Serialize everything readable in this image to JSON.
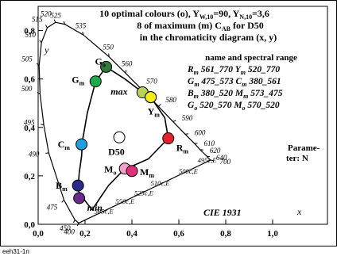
{
  "header": {
    "line1": "10 optimal colours (o), Y",
    "line1_sub1": "W,10",
    "line1_mid": "=90, Y",
    "line1_sub2": "N,10",
    "line1_end": "=3,6",
    "line2": "8 of maximum (m) C",
    "line2_sub": "AB",
    "line2_end": " for D50",
    "line3": "in the chromaticity diagram (x, y)"
  },
  "legend": {
    "heading": "name and spectral range",
    "rows": [
      [
        "R",
        "m",
        " 561_770 ",
        "Y",
        "m",
        " 520_770"
      ],
      [
        "G",
        "m",
        " 475_573 ",
        "C",
        "m",
        " 380_561"
      ],
      [
        "B",
        "m",
        " 380_520 ",
        "M",
        "m",
        " 573_475"
      ],
      [
        "G",
        "o",
        " 520_570 ",
        "M",
        "o",
        " 570_520"
      ]
    ]
  },
  "side_note": {
    "line1": "Parame-",
    "line2": "ter: N"
  },
  "cie_label": "CIE 1931",
  "axis": {
    "x_title": "x",
    "y_title": "y",
    "x_ticks": [
      "0,0",
      "0,2",
      "0,4",
      "0,6",
      "0,8",
      "1,0"
    ],
    "y_ticks": [
      "0,0",
      "0,2",
      "0,4",
      "0,6",
      "0,8"
    ]
  },
  "footer_code": "eeh31-1n",
  "chart_data": {
    "type": "scatter",
    "xlim": [
      0,
      1
    ],
    "ylim": [
      0,
      0.9
    ],
    "grid": false,
    "locus": [
      {
        "label": "400",
        "x": 0.173,
        "y": 0.005
      },
      {
        "label": "450",
        "x": 0.157,
        "y": 0.018
      },
      {
        "label": "475",
        "x": 0.11,
        "y": 0.1
      },
      {
        "label": "490",
        "x": 0.045,
        "y": 0.295
      },
      {
        "label": "495",
        "x": 0.024,
        "y": 0.41
      },
      {
        "label": "500",
        "x": 0.008,
        "y": 0.538
      },
      {
        "label": "505",
        "x": 0.004,
        "y": 0.655
      },
      {
        "label": "510",
        "x": 0.014,
        "y": 0.75
      },
      {
        "label": "515",
        "x": 0.039,
        "y": 0.812
      },
      {
        "label": "520",
        "x": 0.074,
        "y": 0.834
      },
      {
        "label": "525",
        "x": 0.114,
        "y": 0.826
      },
      {
        "label": "535",
        "x": 0.193,
        "y": 0.782
      },
      {
        "label": "550",
        "x": 0.302,
        "y": 0.692
      },
      {
        "label": "560",
        "x": 0.373,
        "y": 0.624
      },
      {
        "label": "570",
        "x": 0.444,
        "y": 0.555
      },
      {
        "label": "580",
        "x": 0.513,
        "y": 0.487
      },
      {
        "label": "590",
        "x": 0.575,
        "y": 0.424
      },
      {
        "label": "600",
        "x": 0.627,
        "y": 0.372
      },
      {
        "label": "610",
        "x": 0.666,
        "y": 0.334
      },
      {
        "label": "620",
        "x": 0.691,
        "y": 0.308
      },
      {
        "label": "640",
        "x": 0.719,
        "y": 0.281
      },
      {
        "label": "700",
        "x": 0.735,
        "y": 0.265
      }
    ],
    "purple_line_labels": [
      {
        "label": "495c,E",
        "x": 0.68,
        "y": 0.255
      },
      {
        "label": "500c,E",
        "x": 0.6,
        "y": 0.21
      },
      {
        "label": "510c,E",
        "x": 0.48,
        "y": 0.16
      },
      {
        "label": "525c,E",
        "x": 0.41,
        "y": 0.12
      },
      {
        "label": "550c,E",
        "x": 0.33,
        "y": 0.085
      },
      {
        "label": "565c,E",
        "x": 0.24,
        "y": 0.045
      }
    ],
    "gamut_curve": [
      [
        0.23,
        0.06
      ],
      [
        0.19,
        0.11
      ],
      [
        0.17,
        0.14
      ],
      [
        0.175,
        0.21
      ],
      [
        0.185,
        0.28
      ],
      [
        0.19,
        0.35
      ],
      [
        0.21,
        0.46
      ],
      [
        0.245,
        0.59
      ],
      [
        0.29,
        0.65
      ],
      [
        0.37,
        0.6
      ],
      [
        0.445,
        0.545
      ],
      [
        0.48,
        0.525
      ],
      [
        0.54,
        0.44
      ],
      [
        0.555,
        0.355
      ],
      [
        0.47,
        0.27
      ],
      [
        0.4,
        0.24
      ],
      [
        0.37,
        0.23
      ],
      [
        0.3,
        0.16
      ],
      [
        0.23,
        0.06
      ]
    ],
    "points": [
      {
        "name": "G",
        "sub": "o",
        "x": 0.29,
        "y": 0.65,
        "color": "#2f7a3c",
        "label_dx": -14,
        "label_dy": -3
      },
      {
        "name": "G",
        "sub": "m",
        "x": 0.245,
        "y": 0.59,
        "color": "#1faa4a",
        "label_dx": -30,
        "label_dy": 2
      },
      {
        "name": "max",
        "sub": "",
        "x": 0.445,
        "y": 0.545,
        "color": "#b8d35a",
        "label_dx": -40,
        "label_dy": 3
      },
      {
        "name": "",
        "sub": "",
        "x": 0.48,
        "y": 0.525,
        "color": "#f4ec1a",
        "label_dx": 0,
        "label_dy": 0
      },
      {
        "name": "Y",
        "sub": "m",
        "x": 0.48,
        "y": 0.525,
        "color": "#f4ec1a",
        "label_dx": -4,
        "label_dy": 22
      },
      {
        "name": "R",
        "sub": "m",
        "x": 0.555,
        "y": 0.355,
        "color": "#e3232c",
        "label_dx": 10,
        "label_dy": 16
      },
      {
        "name": "C",
        "sub": "m",
        "x": 0.185,
        "y": 0.33,
        "color": "#1ea0e0",
        "label_dx": -30,
        "label_dy": 4
      },
      {
        "name": "D50",
        "sub": "",
        "x": 0.346,
        "y": 0.359,
        "color": "#ffffff",
        "label_dx": -14,
        "label_dy": 22
      },
      {
        "name": "M",
        "sub": "o",
        "x": 0.37,
        "y": 0.23,
        "color": "#f0a0c8",
        "label_dx": -26,
        "label_dy": 5
      },
      {
        "name": "M",
        "sub": "m",
        "x": 0.4,
        "y": 0.22,
        "color": "#e0307a",
        "label_dx": 10,
        "label_dy": 5
      },
      {
        "name": "B",
        "sub": "m",
        "x": 0.17,
        "y": 0.16,
        "color": "#2a2a8c",
        "label_dx": -28,
        "label_dy": 4
      },
      {
        "name": "min",
        "sub": "",
        "x": 0.175,
        "y": 0.108,
        "color": "#6a2a8a",
        "label_dx": 10,
        "label_dy": 16
      }
    ]
  }
}
